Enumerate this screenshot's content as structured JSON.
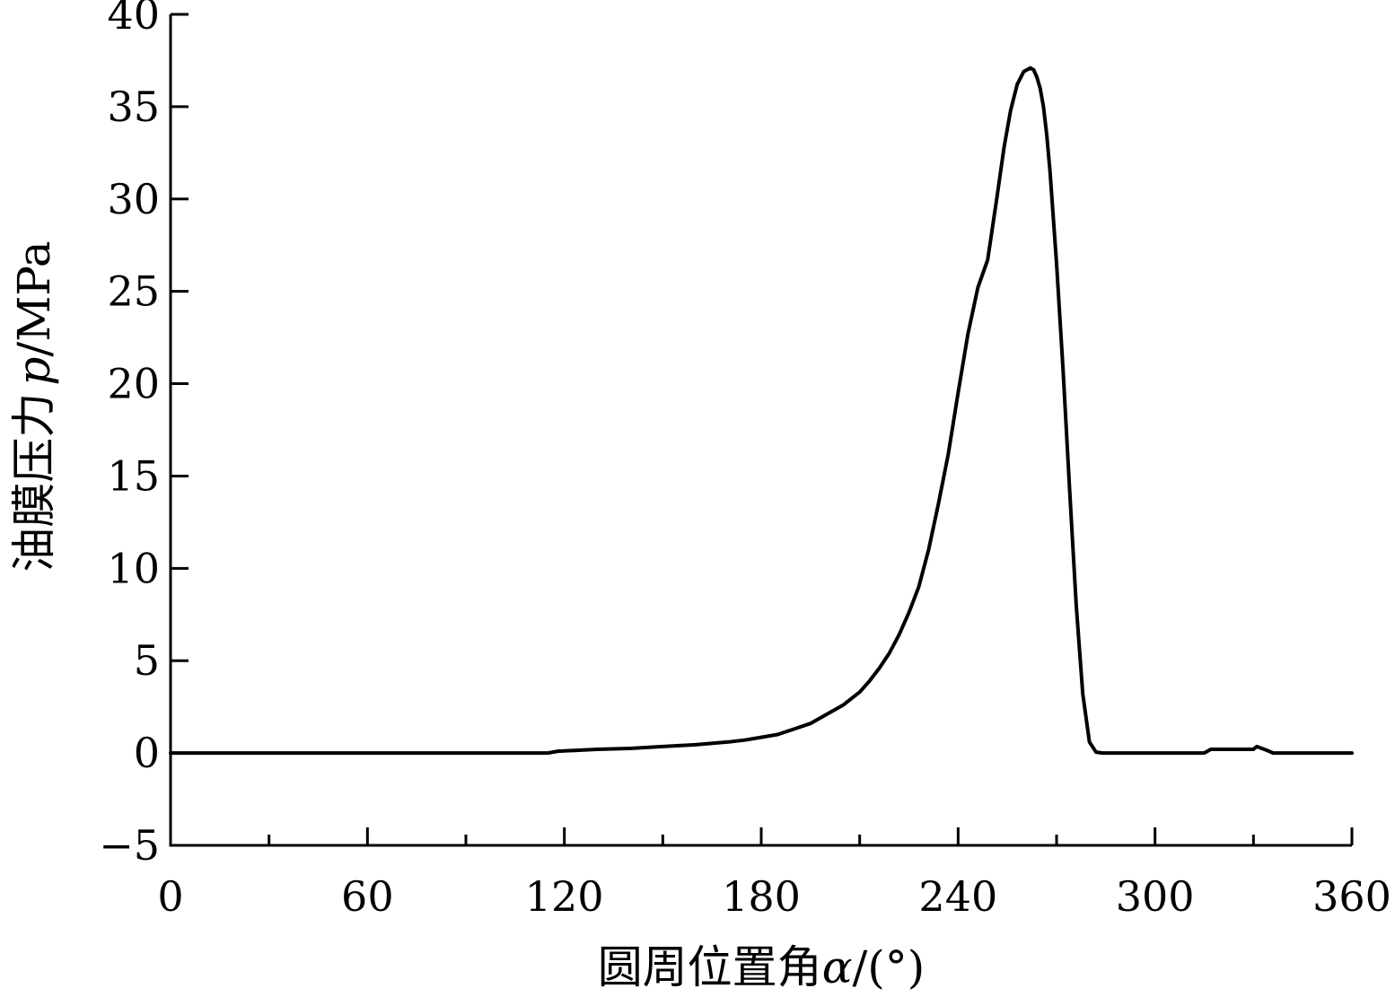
{
  "chart_data": {
    "type": "line",
    "xlabel_prefix": "圆周位置角",
    "xlabel_symbol": "α",
    "xlabel_unit": "/(°)",
    "ylabel_prefix": "油膜压力",
    "ylabel_symbol": "p",
    "ylabel_unit": "/MPa",
    "xlim": [
      0,
      360
    ],
    "ylim": [
      -5,
      40
    ],
    "x_ticks": [
      0,
      60,
      120,
      180,
      240,
      300,
      360
    ],
    "x_minor_ticks": [
      30,
      90,
      150,
      210,
      270,
      330
    ],
    "y_ticks": [
      -5,
      0,
      5,
      10,
      15,
      20,
      25,
      30,
      35,
      40
    ],
    "x_tick_labels": [
      "0",
      "60",
      "120",
      "180",
      "240",
      "300",
      "360"
    ],
    "y_tick_labels": [
      "−5",
      "0",
      "5",
      "10",
      "15",
      "20",
      "25",
      "30",
      "35",
      "40"
    ],
    "grid": false,
    "line_color": "#000000",
    "series": [
      {
        "x": [
          0,
          60,
          115,
          118,
          130,
          140,
          150,
          160,
          170,
          175,
          180,
          185,
          190,
          195,
          200,
          205,
          210,
          213,
          216,
          219,
          222,
          225,
          228,
          231,
          234,
          237,
          240,
          243,
          246,
          249,
          250,
          252,
          254,
          256,
          258,
          260,
          262,
          263,
          264,
          265,
          266,
          267,
          268,
          270,
          272,
          274,
          276,
          278,
          280,
          282,
          284,
          285,
          286,
          287,
          288,
          300,
          315,
          317,
          330,
          331,
          334,
          336,
          345,
          360
        ],
        "y": [
          0,
          0,
          0,
          0.1,
          0.2,
          0.25,
          0.35,
          0.45,
          0.6,
          0.7,
          0.85,
          1.0,
          1.3,
          1.6,
          2.1,
          2.6,
          3.3,
          3.9,
          4.6,
          5.4,
          6.4,
          7.6,
          9.0,
          11.0,
          13.5,
          16.2,
          19.5,
          22.7,
          25.2,
          26.7,
          27.9,
          30.3,
          32.8,
          34.8,
          36.2,
          36.9,
          37.1,
          37.0,
          36.6,
          36.0,
          35.0,
          33.5,
          31.5,
          26.5,
          20.7,
          14.2,
          8.0,
          3.2,
          0.6,
          0.05,
          0,
          0,
          0,
          0,
          0,
          0,
          0,
          0.2,
          0.2,
          0.35,
          0.15,
          0,
          0,
          0
        ]
      }
    ]
  }
}
